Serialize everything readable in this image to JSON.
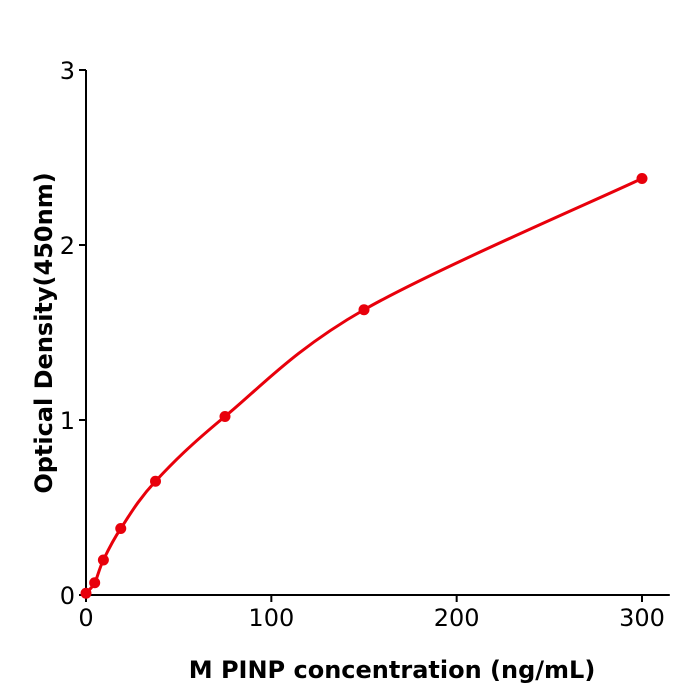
{
  "chart_data": {
    "type": "line",
    "title": "",
    "xlabel": "M  PINP concentration (ng/mL)",
    "ylabel": "Optical Density(450nm)",
    "xlim": [
      0,
      315
    ],
    "ylim": [
      0,
      3
    ],
    "xticks": [
      0,
      100,
      200,
      300
    ],
    "yticks": [
      0,
      1,
      2,
      3
    ],
    "grid": false,
    "legend": "none",
    "series": [
      {
        "color": "#e8000b",
        "x": [
          0,
          4.69,
          9.38,
          18.75,
          37.5,
          75,
          150,
          300
        ],
        "y": [
          0.01,
          0.07,
          0.2,
          0.38,
          0.65,
          1.02,
          1.63,
          2.38
        ],
        "style": "points with smooth fitted curve"
      }
    ]
  }
}
